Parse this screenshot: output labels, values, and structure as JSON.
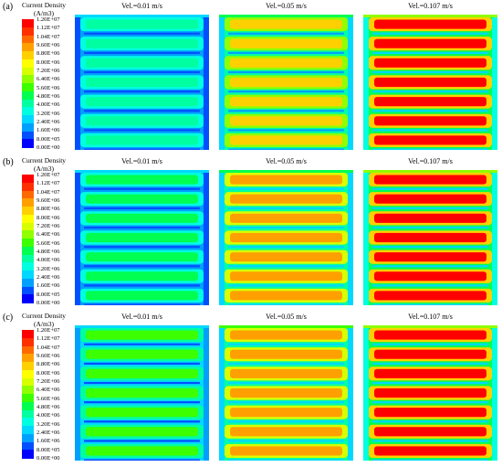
{
  "figure": {
    "rows": [
      {
        "label": "(a)",
        "colorbar": {
          "title_line1": "Current Density",
          "title_line2": "(A/m3)",
          "ticks": [
            "1.20E+07",
            "1.12E+07",
            "1.04E+07",
            "9.60E+06",
            "8.80E+06",
            "8.00E+06",
            "7.20E+06",
            "6.40E+06",
            "5.60E+06",
            "4.80E+06",
            "4.00E+06",
            "3.20E+06",
            "2.40E+06",
            "1.60E+06",
            "8.00E+05",
            "0.00E+00"
          ]
        },
        "panels": [
          {
            "title": "Vel.=0.01 m/s",
            "level": 0.35
          },
          {
            "title": "Vel.=0.05 m/s",
            "level": 0.72
          },
          {
            "title": "Vel.=0.107 m/s",
            "level": 0.95
          }
        ]
      },
      {
        "label": "(b)",
        "colorbar": {
          "title_line1": "Current Density",
          "title_line2": "(A/m3)",
          "ticks": [
            "1.20E+07",
            "1.12E+07",
            "1.04E+07",
            "9.60E+06",
            "8.80E+06",
            "8.00E+06",
            "7.20E+06",
            "6.40E+06",
            "5.60E+06",
            "4.80E+06",
            "4.00E+06",
            "3.20E+06",
            "2.40E+06",
            "1.60E+06",
            "8.00E+05",
            "0.00E+00"
          ]
        },
        "panels": [
          {
            "title": "Vel.=0.01 m/s",
            "level": 0.4
          },
          {
            "title": "Vel.=0.05 m/s",
            "level": 0.76
          },
          {
            "title": "Vel.=0.107 m/s",
            "level": 0.97
          }
        ]
      },
      {
        "label": "(c)",
        "colorbar": {
          "title_line1": "Current Density",
          "title_line2": "(A/m3)",
          "ticks": [
            "1.20E+07",
            "1.12E+07",
            "1.04E+07",
            "9.60E+06",
            "8.80E+06",
            "8.00E+06",
            "7.20E+06",
            "6.40E+06",
            "5.60E+06",
            "4.80E+06",
            "4.00E+06",
            "3.20E+06",
            "2.40E+06",
            "1.60E+06",
            "8.00E+05",
            "0.00E+00"
          ]
        },
        "panels": [
          {
            "title": "Vel.=0.01 m/s",
            "level": 0.45
          },
          {
            "title": "Vel.=0.05 m/s",
            "level": 0.8
          },
          {
            "title": "Vel.=0.107 m/s",
            "level": 0.97
          }
        ]
      }
    ],
    "colormap": [
      "#0000ff",
      "#0050ff",
      "#00a0ff",
      "#00d8ff",
      "#00ffe0",
      "#00ffa0",
      "#00ff50",
      "#3cff00",
      "#90ff00",
      "#d8ff00",
      "#ffff00",
      "#ffd000",
      "#ffa000",
      "#ff6a00",
      "#ff3000",
      "#ff0000"
    ],
    "channel_count": 7
  }
}
